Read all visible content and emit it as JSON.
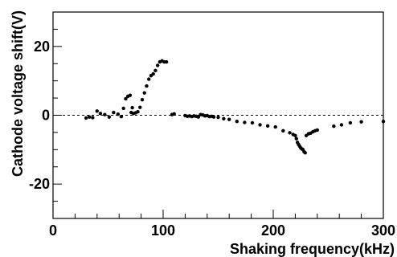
{
  "chart_data": {
    "type": "scatter",
    "title": "",
    "xlabel": "Shaking frequency(kHz)",
    "ylabel": "Cathode voltage shift(V)",
    "xlim": [
      0,
      300
    ],
    "ylim": [
      -30,
      30
    ],
    "x_ticks": [
      0,
      100,
      200,
      300
    ],
    "x_tick_labels": [
      "0",
      "100",
      "200",
      "300"
    ],
    "y_ticks": [
      -20,
      0,
      20
    ],
    "y_tick_labels": [
      "-20",
      "0",
      "20"
    ],
    "grid": false,
    "legend": "none",
    "reference_line": {
      "y": 0,
      "style": "dashed"
    },
    "marker_color": "#000000",
    "series": [
      {
        "points": [
          [
            30,
            -0.8
          ],
          [
            33,
            -0.5
          ],
          [
            36,
            -0.7
          ],
          [
            40,
            1.2
          ],
          [
            43,
            0.5
          ],
          [
            47,
            0.2
          ],
          [
            51,
            -0.5
          ],
          [
            55,
            0.8
          ],
          [
            59,
            0.3
          ],
          [
            62,
            -0.4
          ],
          [
            64,
            2.0
          ],
          [
            66,
            4.8
          ],
          [
            68,
            5.5
          ],
          [
            70,
            5.8
          ],
          [
            71,
            0.8
          ],
          [
            72,
            2.2
          ],
          [
            73,
            0.5
          ],
          [
            75,
            0.7
          ],
          [
            77,
            1.0
          ],
          [
            79,
            2.3
          ],
          [
            81,
            4.5
          ],
          [
            83,
            6.5
          ],
          [
            85,
            8.5
          ],
          [
            87,
            10.5
          ],
          [
            89,
            11.5
          ],
          [
            91,
            12.0
          ],
          [
            93,
            13.0
          ],
          [
            95,
            14.5
          ],
          [
            97,
            15.5
          ],
          [
            99,
            15.8
          ],
          [
            101,
            15.5
          ],
          [
            103,
            15.5
          ],
          [
            108,
            0.2
          ],
          [
            110,
            0.4
          ],
          [
            120,
            -0.1
          ],
          [
            122,
            -0.3
          ],
          [
            124,
            -0.2
          ],
          [
            126,
            -0.4
          ],
          [
            128,
            -0.2
          ],
          [
            130,
            -0.3
          ],
          [
            132,
            -0.5
          ],
          [
            134,
            0.2
          ],
          [
            136,
            0.1
          ],
          [
            138,
            -0.2
          ],
          [
            140,
            -0.1
          ],
          [
            142,
            -0.4
          ],
          [
            144,
            -0.3
          ],
          [
            146,
            -0.5
          ],
          [
            150,
            -0.6
          ],
          [
            155,
            -1.0
          ],
          [
            160,
            -1.2
          ],
          [
            167,
            -1.8
          ],
          [
            174,
            -2.1
          ],
          [
            181,
            -2.2
          ],
          [
            188,
            -2.8
          ],
          [
            195,
            -3.1
          ],
          [
            202,
            -3.4
          ],
          [
            209,
            -4.5
          ],
          [
            215,
            -5.1
          ],
          [
            218,
            -5.6
          ],
          [
            220,
            -5.9
          ],
          [
            221,
            -6.8
          ],
          [
            222,
            -7.9
          ],
          [
            223,
            -8.5
          ],
          [
            224,
            -9.0
          ],
          [
            225,
            -9.5
          ],
          [
            226,
            -9.8
          ],
          [
            227,
            -10.0
          ],
          [
            228,
            -10.6
          ],
          [
            229,
            -10.9
          ],
          [
            230,
            -5.9
          ],
          [
            232,
            -5.4
          ],
          [
            234,
            -5.2
          ],
          [
            236,
            -4.8
          ],
          [
            238,
            -4.5
          ],
          [
            240,
            -4.3
          ],
          [
            255,
            -3.2
          ],
          [
            262,
            -2.8
          ],
          [
            270,
            -2.2
          ],
          [
            280,
            -1.9
          ],
          [
            300,
            -1.8
          ]
        ]
      }
    ]
  }
}
